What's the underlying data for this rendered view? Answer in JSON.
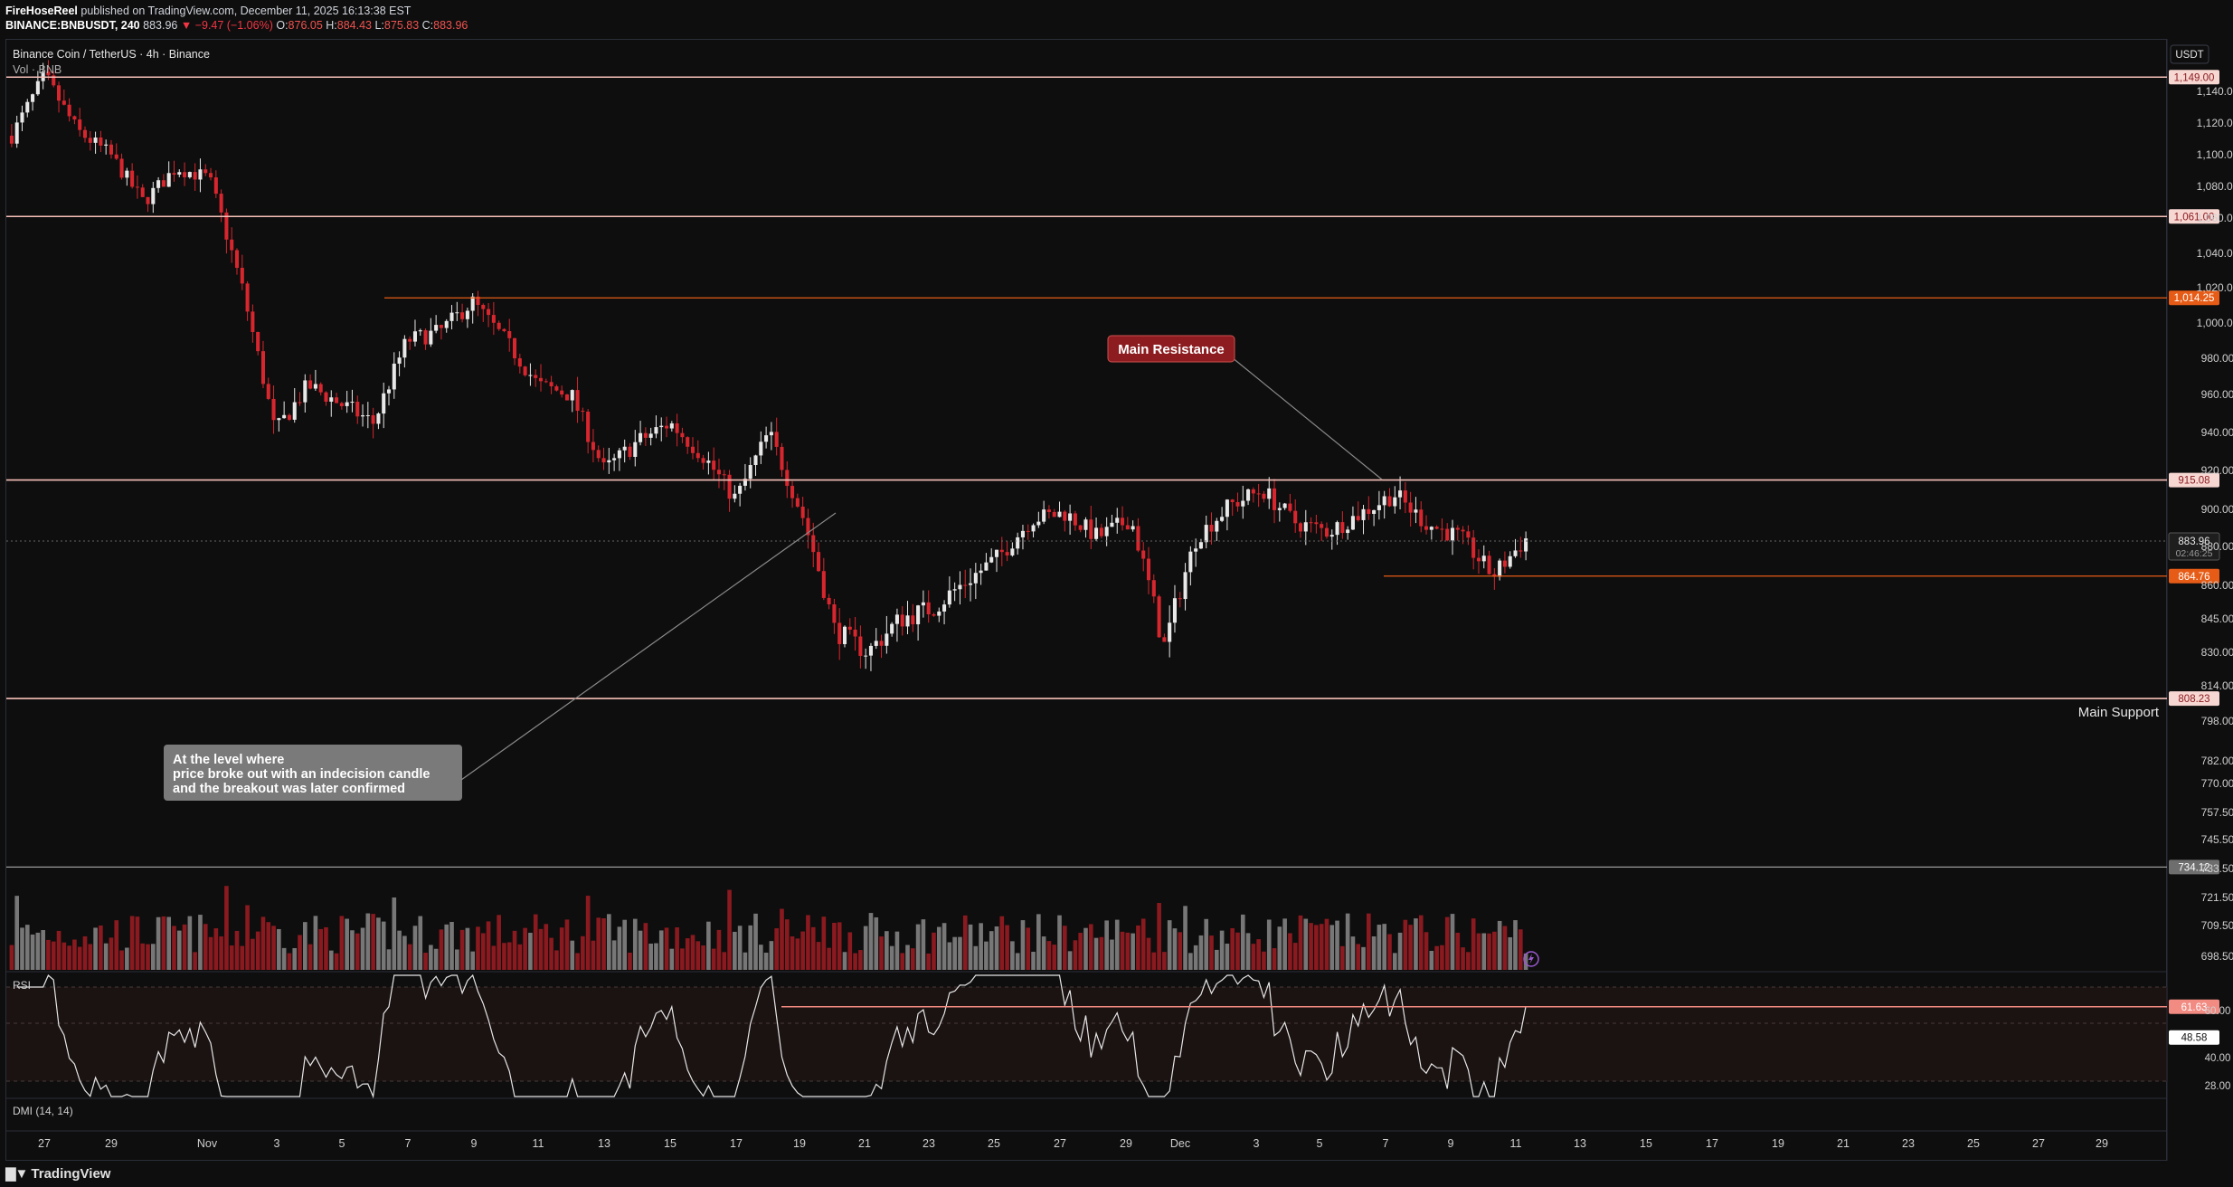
{
  "header": {
    "publisher": "FireHoseReel",
    "published_text": "published on TradingView.com, December 11, 2025 16:13:38 EST",
    "symbol": "BINANCE:BNBUSDT, 240",
    "last": "883.96",
    "change": "▼ −9.47 (−1.06%)",
    "o_label": "O:",
    "o": "876.05",
    "h_label": "H:",
    "h": "884.43",
    "l_label": "L:",
    "l": "875.83",
    "c_label": "C:",
    "c": "883.96"
  },
  "legend": {
    "title": "Binance Coin / TetherUS · 4h · Binance",
    "vol": "Vol · BNB"
  },
  "currency_badge": "USDT",
  "annotations": {
    "main_resistance": "Main Resistance",
    "main_support": "Main Support",
    "note": [
      "At the level where",
      "price broke out with an indecision candle",
      "and the breakout was later confirmed"
    ]
  },
  "footer": {
    "brand": "TradingView"
  },
  "colors": {
    "background": "#0e0e0e",
    "up_candle": "#e8e8e8",
    "down_candle": "#d8262e",
    "level_line": "#f7c0b8",
    "accent_orange": "#e65c16",
    "rsi_line": "#e6e6e6",
    "rsi_band": "#1b1212"
  },
  "chart_data": {
    "type": "candlestick",
    "instrument": "Binance Coin / TetherUS",
    "timeframe": "4h",
    "price_axis_ticks": [
      1140,
      1120,
      1100,
      1080,
      1060,
      1040,
      1020,
      1000,
      980,
      960,
      940,
      920,
      900,
      880,
      860,
      845,
      830,
      814,
      798,
      782,
      770,
      757.5,
      745.5,
      733.5,
      721.5,
      709.5,
      698.5
    ],
    "price_axis_tick_labels": [
      "1,140.00",
      "1,120.00",
      "1,100.00",
      "1,080.00",
      "1,060.00",
      "1,040.00",
      "1,020.00",
      "1,000.00",
      "980.00",
      "960.00",
      "940.00",
      "920.00",
      "900.00",
      "880.00",
      "860.00",
      "845.00",
      "830.00",
      "814.00",
      "798.00",
      "782.00",
      "770.00",
      "757.50",
      "745.50",
      "733.50",
      "721.50",
      "709.50",
      "698.50"
    ],
    "x_axis_labels": [
      "27",
      "29",
      "Nov",
      "3",
      "5",
      "7",
      "9",
      "11",
      "13",
      "15",
      "17",
      "19",
      "21",
      "23",
      "25",
      "27",
      "29",
      "Dec",
      "3",
      "5",
      "7",
      "9",
      "11",
      "13",
      "15",
      "17",
      "19",
      "21",
      "23",
      "25",
      "27",
      "29"
    ],
    "horizontal_levels": [
      {
        "price": 1149.0,
        "label": "1,149.00",
        "style": "light"
      },
      {
        "price": 1061.0,
        "label": "1,061.00",
        "style": "light"
      },
      {
        "price": 1014.25,
        "label": "1,014.25",
        "style": "orange"
      },
      {
        "price": 915.08,
        "label": "915.08",
        "style": "light"
      },
      {
        "price": 864.76,
        "label": "864.76",
        "style": "orange"
      },
      {
        "price": 808.23,
        "label": "808.23",
        "style": "light"
      },
      {
        "price": 734.12,
        "label": "734.12",
        "style": "grey"
      }
    ],
    "last_price": {
      "value": 883.96,
      "label": "883.96",
      "countdown": "02:46:25"
    },
    "price_path": [
      {
        "date": "Oct 26",
        "price": 1112
      },
      {
        "date": "Oct 27",
        "price": 1150
      },
      {
        "date": "Oct 28",
        "price": 1115
      },
      {
        "date": "Oct 29",
        "price": 1100
      },
      {
        "date": "Oct 30",
        "price": 1070
      },
      {
        "date": "Oct 31",
        "price": 1092
      },
      {
        "date": "Nov 2",
        "price": 1085
      },
      {
        "date": "Nov 3",
        "price": 1020
      },
      {
        "date": "Nov 4",
        "price": 940
      },
      {
        "date": "Nov 5",
        "price": 965
      },
      {
        "date": "Nov 6",
        "price": 955
      },
      {
        "date": "Nov 7",
        "price": 945
      },
      {
        "date": "Nov 8",
        "price": 990
      },
      {
        "date": "Nov 9",
        "price": 995
      },
      {
        "date": "Nov 10",
        "price": 1012
      },
      {
        "date": "Nov 11",
        "price": 990
      },
      {
        "date": "Nov 12",
        "price": 965
      },
      {
        "date": "Nov 13",
        "price": 960
      },
      {
        "date": "Nov 14",
        "price": 920
      },
      {
        "date": "Nov 15",
        "price": 935
      },
      {
        "date": "Nov 16",
        "price": 945
      },
      {
        "date": "Nov 17",
        "price": 928
      },
      {
        "date": "Nov 18",
        "price": 905
      },
      {
        "date": "Nov 19",
        "price": 940
      },
      {
        "date": "Nov 20",
        "price": 898
      },
      {
        "date": "Nov 21",
        "price": 840
      },
      {
        "date": "Nov 22",
        "price": 830
      },
      {
        "date": "Nov 23",
        "price": 845
      },
      {
        "date": "Nov 24",
        "price": 850
      },
      {
        "date": "Nov 25",
        "price": 862
      },
      {
        "date": "Nov 26",
        "price": 875
      },
      {
        "date": "Nov 27",
        "price": 895
      },
      {
        "date": "Nov 28",
        "price": 898
      },
      {
        "date": "Nov 29",
        "price": 885
      },
      {
        "date": "Nov 30",
        "price": 895
      },
      {
        "date": "Dec 1",
        "price": 832
      },
      {
        "date": "Dec 2",
        "price": 885
      },
      {
        "date": "Dec 3",
        "price": 902
      },
      {
        "date": "Dec 4",
        "price": 910
      },
      {
        "date": "Dec 5",
        "price": 893
      },
      {
        "date": "Dec 6",
        "price": 888
      },
      {
        "date": "Dec 7",
        "price": 898
      },
      {
        "date": "Dec 8",
        "price": 908
      },
      {
        "date": "Dec 9",
        "price": 892
      },
      {
        "date": "Dec 10",
        "price": 885
      },
      {
        "date": "Dec 11",
        "price": 865
      },
      {
        "date": "Dec 11",
        "price": 884
      }
    ],
    "volume_pane": {
      "label": "Vol · BNB"
    },
    "rsi": {
      "label": "RSI",
      "ticks": [
        60,
        40,
        28
      ],
      "tick_labels": [
        "60.00",
        "40.00",
        "28.00"
      ],
      "level_line": {
        "value": 61.63,
        "label": "61.63"
      },
      "current": {
        "value": 48.58,
        "label": "48.58"
      },
      "band": [
        30,
        70
      ]
    },
    "dmi": {
      "label": "DMI (14, 14)"
    }
  }
}
